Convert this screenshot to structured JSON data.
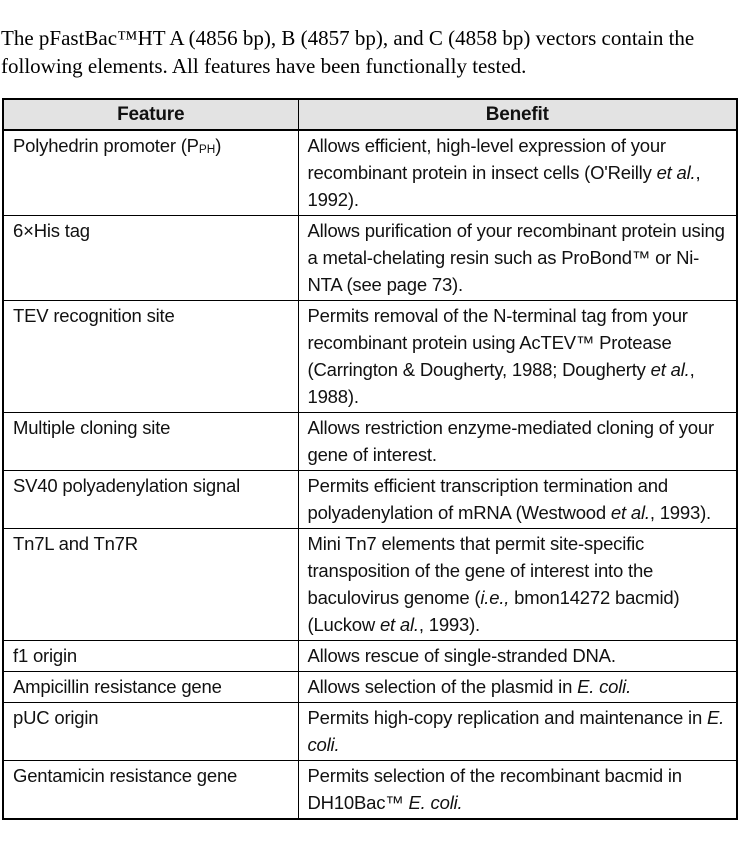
{
  "intro": {
    "text": "The pFastBac™HT A (4856 bp), B (4857 bp), and C (4858 bp) vectors contain the following elements. All features have been functionally tested."
  },
  "table": {
    "headers": {
      "feature": "Feature",
      "benefit": "Benefit"
    },
    "rows": [
      {
        "feature_runs": [
          {
            "t": "Polyhedrin promoter (P"
          },
          {
            "t": "PH",
            "small": true
          },
          {
            "t": ")"
          }
        ],
        "benefit_runs": [
          {
            "t": "Allows efficient, high-level expression of your recombinant protein in insect cells (O'Reilly "
          },
          {
            "t": "et al.",
            "i": true
          },
          {
            "t": ", 1992)."
          }
        ]
      },
      {
        "feature_runs": [
          {
            "t": "6×His tag"
          }
        ],
        "benefit_runs": [
          {
            "t": "Allows purification of your recombinant protein using a metal-chelating resin such as ProBond™ or Ni-NTA (see page 73)."
          }
        ]
      },
      {
        "feature_runs": [
          {
            "t": "TEV recognition site"
          }
        ],
        "benefit_runs": [
          {
            "t": "Permits removal of the N-terminal tag from your recombinant protein using AcTEV™ Protease (Carrington & Dougherty, 1988; Dougherty "
          },
          {
            "t": "et al.",
            "i": true
          },
          {
            "t": ", 1988)."
          }
        ]
      },
      {
        "feature_runs": [
          {
            "t": "Multiple cloning site"
          }
        ],
        "benefit_runs": [
          {
            "t": "Allows restriction enzyme-mediated cloning of your gene of interest."
          }
        ]
      },
      {
        "feature_runs": [
          {
            "t": "SV40 polyadenylation signal"
          }
        ],
        "benefit_runs": [
          {
            "t": "Permits efficient transcription termination and polyadenylation of mRNA (Westwood "
          },
          {
            "t": "et al.",
            "i": true
          },
          {
            "t": ", 1993)."
          }
        ]
      },
      {
        "feature_runs": [
          {
            "t": "Tn7L and Tn7R"
          }
        ],
        "benefit_runs": [
          {
            "t": "Mini Tn7 elements that permit site-specific transposition of the gene of interest into the baculovirus genome ("
          },
          {
            "t": "i.e.,",
            "i": true
          },
          {
            "t": " bmon14272 bacmid) (Luckow "
          },
          {
            "t": "et al.",
            "i": true
          },
          {
            "t": ", 1993)."
          }
        ]
      },
      {
        "feature_runs": [
          {
            "t": "f1 origin"
          }
        ],
        "benefit_runs": [
          {
            "t": "Allows rescue of single-stranded DNA."
          }
        ]
      },
      {
        "feature_runs": [
          {
            "t": "Ampicillin resistance gene"
          }
        ],
        "benefit_runs": [
          {
            "t": "Allows selection of the plasmid in "
          },
          {
            "t": "E. coli.",
            "i": true
          }
        ]
      },
      {
        "feature_runs": [
          {
            "t": "pUC origin"
          }
        ],
        "benefit_runs": [
          {
            "t": "Permits high-copy replication and maintenance in "
          },
          {
            "t": "E. coli.",
            "i": true
          }
        ]
      },
      {
        "feature_runs": [
          {
            "t": "Gentamicin resistance gene"
          }
        ],
        "benefit_runs": [
          {
            "t": "Permits selection of the recombinant bacmid in DH10Bac™ "
          },
          {
            "t": "E. coli.",
            "i": true
          }
        ]
      }
    ]
  },
  "colors": {
    "background": "#ffffff",
    "text": "#111111",
    "border": "#000000",
    "header_bg": "#e3e3e3"
  }
}
